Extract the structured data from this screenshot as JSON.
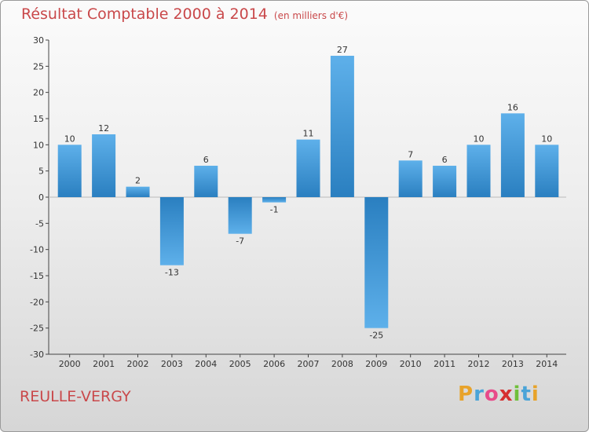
{
  "title": "Résultat Comptable 2000 à 2014",
  "subtitle": "(en milliers d'€)",
  "place": "REULLE-VERGY",
  "logo": {
    "letters": [
      "P",
      "r",
      "o",
      "x",
      "i",
      "t",
      "i"
    ],
    "colors": [
      "#e8a32a",
      "#4aa4d8",
      "#e84a8a",
      "#d62f2f",
      "#6fbf3a",
      "#4aa4d8",
      "#e8a32a"
    ]
  },
  "colors": {
    "bar_top": "#5eb0ea",
    "bar_bottom": "#2a7fc0",
    "title": "#c9484a"
  },
  "chart_data": {
    "type": "bar",
    "title": "Résultat Comptable 2000 à 2014",
    "ylabel": "(en milliers d'€)",
    "xlabel": "",
    "categories": [
      "2000",
      "2001",
      "2002",
      "2003",
      "2004",
      "2005",
      "2006",
      "2007",
      "2008",
      "2009",
      "2010",
      "2011",
      "2012",
      "2013",
      "2014"
    ],
    "values": [
      10,
      12,
      2,
      -13,
      6,
      -7,
      -1,
      11,
      27,
      -25,
      7,
      6,
      10,
      16,
      10
    ],
    "data_labels": [
      "10",
      "12",
      "2",
      "-13",
      "6",
      "-7",
      "-1",
      "11",
      "27",
      "-25",
      "7",
      "6",
      "10",
      "16",
      "10"
    ],
    "ylim": [
      -30,
      30
    ],
    "yticks": [
      30,
      25,
      20,
      15,
      10,
      5,
      0,
      -5,
      -10,
      -15,
      -20,
      -25,
      -30
    ],
    "ytick_labels": [
      "30",
      "25",
      "20",
      "15",
      "10",
      "5",
      "0",
      "-5",
      "-10",
      "-15",
      "-20",
      "-25",
      "-30"
    ],
    "grid": false,
    "legend": "none"
  }
}
